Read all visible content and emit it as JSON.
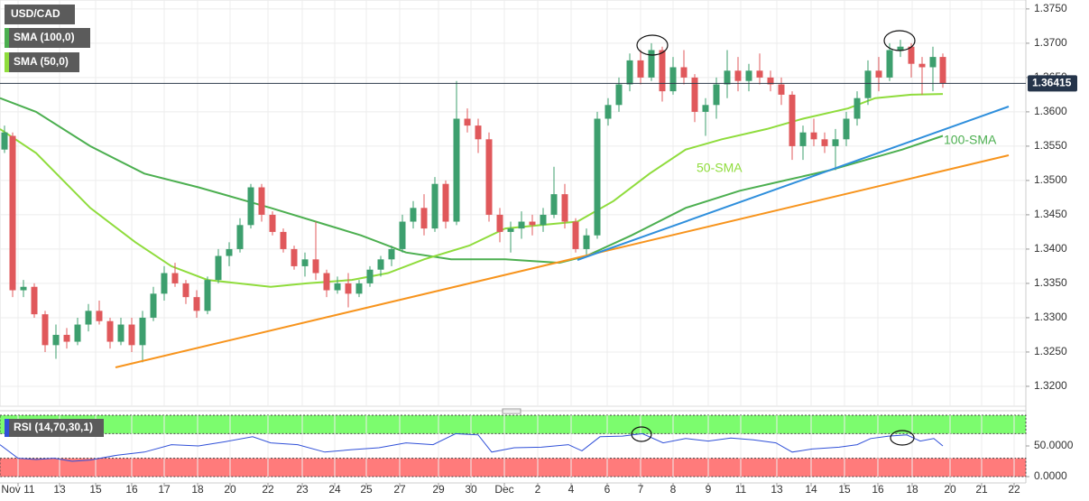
{
  "chart_data": [
    {
      "type": "candlestick",
      "title": "USD/CAD",
      "xlim": [
        0,
        1137
      ],
      "ylim": [
        1.3171,
        1.3763
      ],
      "yticks": [
        {
          "value": 1.375,
          "label": "1.3750"
        },
        {
          "value": 1.37,
          "label": "1.3700"
        },
        {
          "value": 1.365,
          "label": "1.3650"
        },
        {
          "value": 1.36,
          "label": "1.3600"
        },
        {
          "value": 1.355,
          "label": "1.3550"
        },
        {
          "value": 1.35,
          "label": "1.3500"
        },
        {
          "value": 1.345,
          "label": "1.3450"
        },
        {
          "value": 1.34,
          "label": "1.3400"
        },
        {
          "value": 1.335,
          "label": "1.3350"
        },
        {
          "value": 1.33,
          "label": "1.3300"
        },
        {
          "value": 1.325,
          "label": "1.3250"
        },
        {
          "value": 1.32,
          "label": "1.3200"
        }
      ],
      "grid": true,
      "up_color": "#3d9f6e",
      "down_color": "#e0585b",
      "x": [
        5,
        14,
        26,
        38,
        50,
        62,
        74,
        86,
        98,
        110,
        122,
        134,
        146,
        158,
        170,
        182,
        194,
        206,
        218,
        230,
        242,
        254,
        266,
        278,
        290,
        302,
        314,
        326,
        338,
        350,
        362,
        374,
        386,
        398,
        410,
        422,
        434,
        446,
        458,
        470,
        482,
        494,
        506,
        518,
        530,
        542,
        554,
        566,
        578,
        590,
        602,
        614,
        626,
        638,
        650,
        662,
        674,
        686,
        698,
        710,
        722,
        734,
        746,
        758,
        770,
        782,
        794,
        806,
        818,
        830,
        842,
        854,
        866,
        878,
        890,
        902,
        914,
        926,
        938,
        950,
        962,
        974,
        986,
        998,
        1010,
        1022,
        1034,
        1045
      ],
      "open": [
        1.3545,
        1.3565,
        1.334,
        1.3345,
        1.3305,
        1.326,
        1.3275,
        1.3265,
        1.329,
        1.331,
        1.3295,
        1.3265,
        1.329,
        1.326,
        1.33,
        1.3335,
        1.3365,
        1.335,
        1.333,
        1.331,
        1.3355,
        1.339,
        1.34,
        1.3435,
        1.349,
        1.345,
        1.3425,
        1.34,
        1.3375,
        1.3385,
        1.3365,
        1.334,
        1.335,
        1.3335,
        1.335,
        1.337,
        1.3385,
        1.34,
        1.344,
        1.346,
        1.343,
        1.3495,
        1.344,
        1.359,
        1.358,
        1.356,
        1.345,
        1.3425,
        1.343,
        1.344,
        1.3435,
        1.345,
        1.348,
        1.344,
        1.34,
        1.342,
        1.359,
        1.361,
        1.364,
        1.3675,
        1.365,
        1.369,
        1.363,
        1.3665,
        1.365,
        1.36,
        1.361,
        1.364,
        1.366,
        1.3645,
        1.366,
        1.365,
        1.364,
        1.3625,
        1.355,
        1.357,
        1.356,
        1.355,
        1.356,
        1.359,
        1.362,
        1.366,
        1.365,
        1.369,
        1.3695,
        1.367,
        1.3665,
        1.368
      ],
      "high": [
        1.358,
        1.357,
        1.3355,
        1.335,
        1.331,
        1.329,
        1.3285,
        1.33,
        1.332,
        1.3325,
        1.33,
        1.33,
        1.33,
        1.331,
        1.3345,
        1.3375,
        1.338,
        1.3355,
        1.334,
        1.336,
        1.34,
        1.341,
        1.3445,
        1.3495,
        1.3495,
        1.3455,
        1.343,
        1.3405,
        1.3395,
        1.344,
        1.337,
        1.336,
        1.3365,
        1.3355,
        1.3375,
        1.339,
        1.3405,
        1.345,
        1.347,
        1.348,
        1.3505,
        1.35,
        1.3645,
        1.3605,
        1.359,
        1.357,
        1.346,
        1.344,
        1.3455,
        1.345,
        1.346,
        1.352,
        1.3495,
        1.3445,
        1.343,
        1.36,
        1.362,
        1.365,
        1.3685,
        1.369,
        1.37,
        1.3695,
        1.368,
        1.369,
        1.3655,
        1.362,
        1.365,
        1.369,
        1.368,
        1.367,
        1.3685,
        1.366,
        1.365,
        1.363,
        1.358,
        1.359,
        1.357,
        1.3575,
        1.36,
        1.363,
        1.3675,
        1.368,
        1.37,
        1.3705,
        1.37,
        1.368,
        1.3695,
        1.3685
      ],
      "low": [
        1.354,
        1.333,
        1.333,
        1.33,
        1.325,
        1.324,
        1.3255,
        1.326,
        1.328,
        1.329,
        1.3255,
        1.326,
        1.325,
        1.3235,
        1.3295,
        1.3325,
        1.3345,
        1.332,
        1.33,
        1.3305,
        1.335,
        1.3375,
        1.3395,
        1.343,
        1.344,
        1.342,
        1.3395,
        1.337,
        1.336,
        1.3355,
        1.333,
        1.3335,
        1.3315,
        1.333,
        1.3345,
        1.336,
        1.3375,
        1.3395,
        1.343,
        1.342,
        1.3425,
        1.343,
        1.3435,
        1.357,
        1.354,
        1.344,
        1.341,
        1.3395,
        1.3415,
        1.342,
        1.3425,
        1.3445,
        1.343,
        1.3395,
        1.339,
        1.3415,
        1.358,
        1.36,
        1.363,
        1.364,
        1.3645,
        1.3615,
        1.3625,
        1.364,
        1.3585,
        1.3565,
        1.359,
        1.362,
        1.363,
        1.363,
        1.364,
        1.363,
        1.361,
        1.353,
        1.353,
        1.355,
        1.354,
        1.3515,
        1.355,
        1.358,
        1.361,
        1.363,
        1.3645,
        1.368,
        1.365,
        1.3625,
        1.363,
        1.3635
      ],
      "close": [
        1.357,
        1.334,
        1.3345,
        1.3305,
        1.326,
        1.3275,
        1.3265,
        1.329,
        1.331,
        1.3295,
        1.3265,
        1.329,
        1.326,
        1.33,
        1.3335,
        1.3365,
        1.335,
        1.333,
        1.331,
        1.3355,
        1.339,
        1.34,
        1.3435,
        1.349,
        1.345,
        1.3425,
        1.34,
        1.3375,
        1.3385,
        1.3365,
        1.334,
        1.335,
        1.3335,
        1.335,
        1.337,
        1.3385,
        1.34,
        1.344,
        1.346,
        1.343,
        1.3495,
        1.344,
        1.359,
        1.358,
        1.356,
        1.345,
        1.3425,
        1.343,
        1.344,
        1.3435,
        1.345,
        1.348,
        1.344,
        1.34,
        1.342,
        1.359,
        1.361,
        1.364,
        1.3675,
        1.365,
        1.369,
        1.363,
        1.3665,
        1.365,
        1.36,
        1.361,
        1.364,
        1.366,
        1.3645,
        1.366,
        1.365,
        1.364,
        1.3625,
        1.355,
        1.357,
        1.356,
        1.355,
        1.356,
        1.359,
        1.362,
        1.366,
        1.365,
        1.369,
        1.3695,
        1.367,
        1.3665,
        1.368,
        1.36415
      ],
      "last_price": 1.36415,
      "series": [
        {
          "name": "SMA (100,0)",
          "color": "#4caf50",
          "x": [
            0,
            40,
            100,
            160,
            220,
            300,
            350,
            400,
            450,
            500,
            560,
            620,
            650,
            700,
            760,
            820,
            870,
            920,
            960,
            1000,
            1045
          ],
          "values": [
            1.362,
            1.36,
            1.355,
            1.351,
            1.349,
            1.346,
            1.344,
            1.342,
            1.3395,
            1.3385,
            1.3385,
            1.338,
            1.339,
            1.342,
            1.346,
            1.3485,
            1.35,
            1.3515,
            1.353,
            1.3545,
            1.3565
          ]
        },
        {
          "name": "SMA (50,0)",
          "color": "#8fdc3c",
          "x": [
            0,
            40,
            100,
            150,
            190,
            230,
            300,
            340,
            390,
            430,
            470,
            520,
            560,
            600,
            640,
            680,
            720,
            760,
            800,
            850,
            890,
            940,
            970,
            1010,
            1045
          ],
          "values": [
            1.3575,
            1.354,
            1.346,
            1.341,
            1.3375,
            1.3355,
            1.3345,
            1.335,
            1.3355,
            1.3365,
            1.3385,
            1.3405,
            1.343,
            1.3435,
            1.344,
            1.347,
            1.351,
            1.3545,
            1.356,
            1.3575,
            1.359,
            1.3605,
            1.362,
            1.3625,
            1.3626
          ]
        }
      ],
      "annotations": [
        "100-SMA",
        "50-SMA"
      ]
    },
    {
      "type": "line",
      "xlim": [
        0,
        1137
      ],
      "ylim": [
        0,
        100
      ],
      "yticks": [
        {
          "value": 50,
          "label": "50.0000"
        },
        {
          "value": 0,
          "label": "0.0000"
        }
      ],
      "overbought": 70,
      "oversold": 30,
      "xticks": [
        {
          "value": 20,
          "label": "Nov 11"
        },
        {
          "value": 66,
          "label": "13"
        },
        {
          "value": 106,
          "label": "15"
        },
        {
          "value": 146,
          "label": "16"
        },
        {
          "value": 182,
          "label": "17"
        },
        {
          "value": 219,
          "label": "18"
        },
        {
          "value": 255,
          "label": "20"
        },
        {
          "value": 297,
          "label": "22"
        },
        {
          "value": 335,
          "label": "23"
        },
        {
          "value": 371,
          "label": "24"
        },
        {
          "value": 406,
          "label": "25"
        },
        {
          "value": 443,
          "label": "27"
        },
        {
          "value": 486,
          "label": "29"
        },
        {
          "value": 522,
          "label": "30"
        },
        {
          "value": 559,
          "label": "Dec"
        },
        {
          "value": 596,
          "label": "2"
        },
        {
          "value": 633,
          "label": "4"
        },
        {
          "value": 673,
          "label": "6"
        },
        {
          "value": 710,
          "label": "7"
        },
        {
          "value": 746,
          "label": "8"
        },
        {
          "value": 785,
          "label": "9"
        },
        {
          "value": 821,
          "label": "11"
        },
        {
          "value": 861,
          "label": "13"
        },
        {
          "value": 899,
          "label": "14"
        },
        {
          "value": 936,
          "label": "15"
        },
        {
          "value": 973,
          "label": "16"
        },
        {
          "value": 1011,
          "label": "18"
        },
        {
          "value": 1053,
          "label": "20"
        },
        {
          "value": 1088,
          "label": "21"
        },
        {
          "value": 1124,
          "label": "22"
        }
      ],
      "series": [
        {
          "name": "RSI (14,70,30,1)",
          "color": "#3050d8",
          "x": [
            0,
            20,
            40,
            60,
            80,
            100,
            130,
            160,
            190,
            220,
            250,
            280,
            300,
            330,
            360,
            390,
            420,
            450,
            480,
            505,
            530,
            545,
            570,
            600,
            630,
            645,
            665,
            690,
            712,
            735,
            760,
            785,
            810,
            835,
            860,
            878,
            900,
            930,
            950,
            965,
            985,
            1005,
            1020,
            1035,
            1045
          ],
          "values": [
            52,
            30,
            28,
            30,
            25,
            27,
            35,
            40,
            52,
            50,
            57,
            65,
            55,
            52,
            40,
            44,
            47,
            55,
            52,
            70,
            68,
            40,
            47,
            48,
            52,
            42,
            65,
            66,
            70,
            55,
            62,
            58,
            63,
            60,
            55,
            40,
            45,
            48,
            52,
            62,
            66,
            68,
            58,
            62,
            50
          ]
        }
      ]
    }
  ]
}
